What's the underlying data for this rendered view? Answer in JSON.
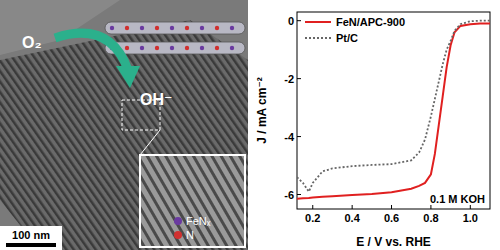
{
  "chart_data": {
    "type": "line",
    "x_label": "E / V vs. RHE",
    "y_label": "J / mA cm⁻²",
    "annotation": "0.1 M KOH",
    "x": [
      0.12,
      0.15,
      0.18,
      0.2,
      0.25,
      0.3,
      0.4,
      0.5,
      0.6,
      0.7,
      0.74,
      0.77,
      0.8,
      0.82,
      0.84,
      0.86,
      0.88,
      0.9,
      0.92,
      0.95,
      1.0,
      1.05,
      1.1
    ],
    "series": [
      {
        "name": "FeN/APC-900",
        "color": "#e02020",
        "line_style": "solid",
        "values": [
          -6.15,
          -6.13,
          -6.12,
          -6.1,
          -6.08,
          -6.06,
          -6.02,
          -5.98,
          -5.92,
          -5.8,
          -5.7,
          -5.6,
          -5.3,
          -4.6,
          -3.6,
          -2.6,
          -1.6,
          -0.85,
          -0.4,
          -0.18,
          -0.12,
          -0.1,
          -0.1
        ]
      },
      {
        "name": "Pt/C",
        "color": "#666666",
        "line_style": "dotted",
        "values": [
          -5.4,
          -5.6,
          -5.9,
          -5.6,
          -5.2,
          -5.1,
          -5.02,
          -4.98,
          -4.95,
          -4.82,
          -4.55,
          -4.1,
          -3.3,
          -2.7,
          -2.1,
          -1.5,
          -1.0,
          -0.7,
          -0.35,
          -0.12,
          -0.02,
          0,
          0
        ]
      }
    ],
    "xlim": [
      0.12,
      1.1
    ],
    "xticks": [
      0.2,
      0.4,
      0.6,
      0.8,
      {
        "value": 1.0,
        "label": "1.0"
      }
    ],
    "ylim": [
      -6.5,
      0.3
    ],
    "yticks": [
      -6,
      -4,
      -2,
      0
    ],
    "legend": "top-left",
    "grid": false
  },
  "image": {
    "reactant": "O₂",
    "product": "OH⁻",
    "scale_bar": "100 nm",
    "site_labels": [
      "FeNₓ",
      "N"
    ]
  }
}
